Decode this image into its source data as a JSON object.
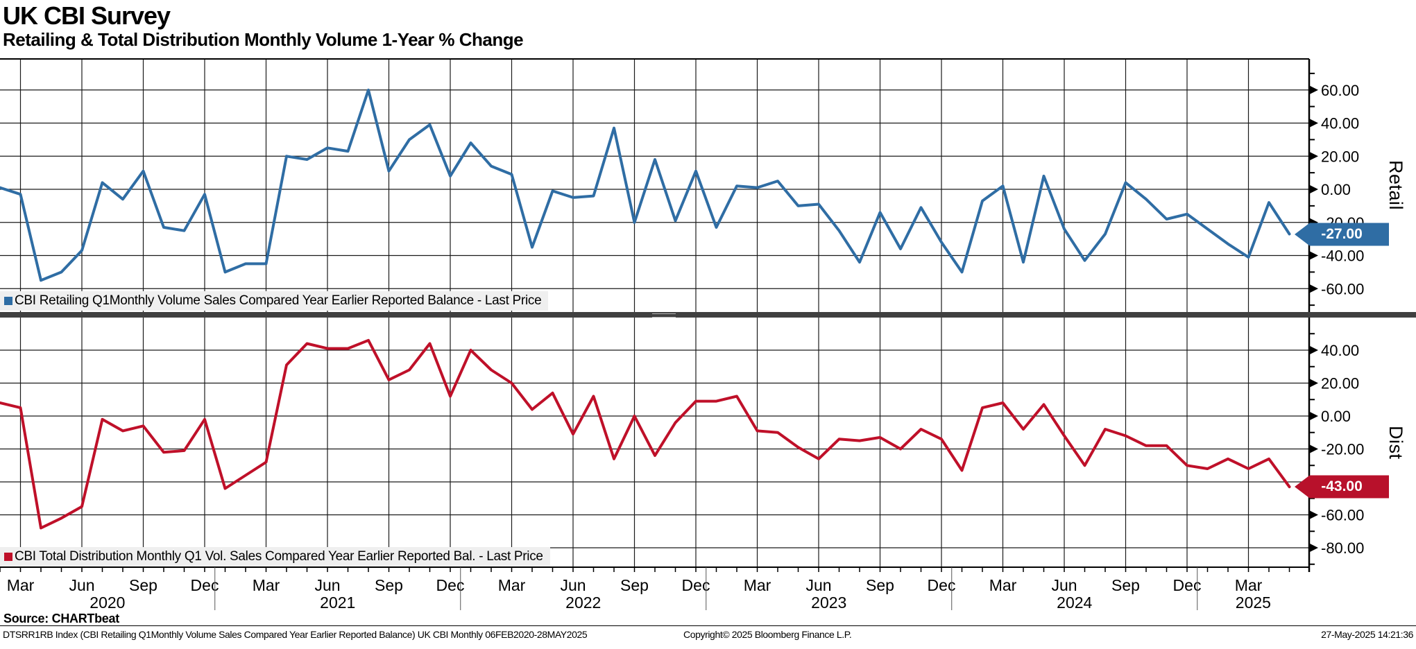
{
  "title": "UK CBI Survey",
  "subtitle": "Retailing & Total Distribution Monthly Volume 1-Year % Change",
  "colors": {
    "retail_line": "#2f6da4",
    "dist_line": "#bf1029",
    "retail_flag_bg": "#2f6da4",
    "dist_flag_bg": "#b8112b",
    "legend_bg": "#efefef",
    "gridline": "#1a1a1a",
    "frame": "#000000",
    "divider": "#404040"
  },
  "chart_data": {
    "type": "line",
    "title": "UK CBI Survey",
    "subtitle": "Retailing & Total Distribution Monthly Volume 1-Year % Change",
    "grid": true,
    "x_tick_cycle": [
      "Mar",
      "Jun",
      "Sep",
      "Dec"
    ],
    "years": [
      "2020",
      "2021",
      "2022",
      "2023",
      "2024",
      "2025"
    ],
    "categories": [
      "2020-02",
      "2020-03",
      "2020-04",
      "2020-05",
      "2020-06",
      "2020-07",
      "2020-08",
      "2020-09",
      "2020-10",
      "2020-11",
      "2020-12",
      "2021-01",
      "2021-02",
      "2021-03",
      "2021-04",
      "2021-05",
      "2021-06",
      "2021-07",
      "2021-08",
      "2021-09",
      "2021-10",
      "2021-11",
      "2021-12",
      "2022-01",
      "2022-02",
      "2022-03",
      "2022-04",
      "2022-05",
      "2022-06",
      "2022-07",
      "2022-08",
      "2022-09",
      "2022-10",
      "2022-11",
      "2022-12",
      "2023-01",
      "2023-02",
      "2023-03",
      "2023-04",
      "2023-05",
      "2023-06",
      "2023-07",
      "2023-08",
      "2023-09",
      "2023-10",
      "2023-11",
      "2023-12",
      "2024-01",
      "2024-02",
      "2024-03",
      "2024-04",
      "2024-05",
      "2024-06",
      "2024-07",
      "2024-08",
      "2024-09",
      "2024-10",
      "2024-11",
      "2024-12",
      "2025-01",
      "2025-02",
      "2025-03",
      "2025-04",
      "2025-05"
    ],
    "series": [
      {
        "name": "Retail",
        "axis_label": "Retail",
        "legend": "CBI Retailing Q1Monthly Volume Sales Compared Year Earlier Reported Balance - Last Price",
        "last_price": "-27.00",
        "color": "#2f6da4",
        "ylim": [
          -74,
          79
        ],
        "yticks": [
          {
            "v": 60,
            "label": "60.00"
          },
          {
            "v": 40,
            "label": "40.00"
          },
          {
            "v": 20,
            "label": "20.00"
          },
          {
            "v": 0,
            "label": "0.00"
          },
          {
            "v": -20,
            "label": "-20.00"
          },
          {
            "v": -40,
            "label": "-40.00"
          },
          {
            "v": -60,
            "label": "-60.00"
          }
        ],
        "yticks_minor": [
          70,
          50,
          30,
          10,
          -10,
          -30,
          -50,
          -70
        ],
        "values": [
          1,
          -3,
          -55,
          -50,
          -37,
          4,
          -6,
          11,
          -23,
          -25,
          -3,
          -50,
          -45,
          -45,
          20,
          18,
          25,
          23,
          60,
          11,
          30,
          39,
          8,
          28,
          14,
          9,
          -35,
          -1,
          -5,
          -4,
          37,
          -20,
          18,
          -19,
          11,
          -23,
          2,
          1,
          5,
          -10,
          -9,
          -25,
          -44,
          -14,
          -36,
          -11,
          -32,
          -50,
          -7,
          2,
          -44,
          8,
          -24,
          -43,
          -27,
          4,
          -6,
          -18,
          -15,
          -24,
          -33,
          -41,
          -8,
          -27
        ]
      },
      {
        "name": "Dist",
        "axis_label": "Dist",
        "legend": "CBI Total Distribution Monthly Q1 Vol. Sales Compared Year Earlier Reported Bal. - Last Price",
        "last_price": "-43.00",
        "color": "#bf1029",
        "ylim": [
          -92,
          61
        ],
        "yticks": [
          {
            "v": 40,
            "label": "40.00"
          },
          {
            "v": 20,
            "label": "20.00"
          },
          {
            "v": 0,
            "label": "0.00"
          },
          {
            "v": -20,
            "label": "-20.00"
          },
          {
            "v": -40,
            "label": "-40.00"
          },
          {
            "v": -60,
            "label": "-60.00"
          },
          {
            "v": -80,
            "label": "-80.00"
          }
        ],
        "yticks_minor": [
          50,
          30,
          10,
          -10,
          -30,
          -50,
          -70,
          -90
        ],
        "values": [
          8,
          5,
          -68,
          -62,
          -55,
          -2,
          -9,
          -6,
          -22,
          -21,
          -2,
          -44,
          -36,
          -28,
          31,
          44,
          41,
          41,
          46,
          22,
          28,
          44,
          12,
          40,
          28,
          20,
          4,
          14,
          -11,
          12,
          -26,
          0,
          -24,
          -4,
          9,
          9,
          12,
          -9,
          -10,
          -19,
          -26,
          -14,
          -15,
          -13,
          -20,
          -8,
          -14,
          -33,
          5,
          8,
          -8,
          7,
          -12,
          -30,
          -8,
          -12,
          -18,
          -18,
          -30,
          -32,
          -26,
          -32,
          -26,
          -43
        ]
      }
    ]
  },
  "footer": {
    "source": "Source: CHARTbeat",
    "description": "DTSRR1RB Index (CBI Retailing Q1Monthly Volume Sales Compared Year Earlier Reported Balance) UK CBI  Monthly 06FEB2020-28MAY2025",
    "copyright": "Copyright© 2025 Bloomberg Finance L.P.",
    "timestamp": "27-May-2025 14:21:36"
  }
}
